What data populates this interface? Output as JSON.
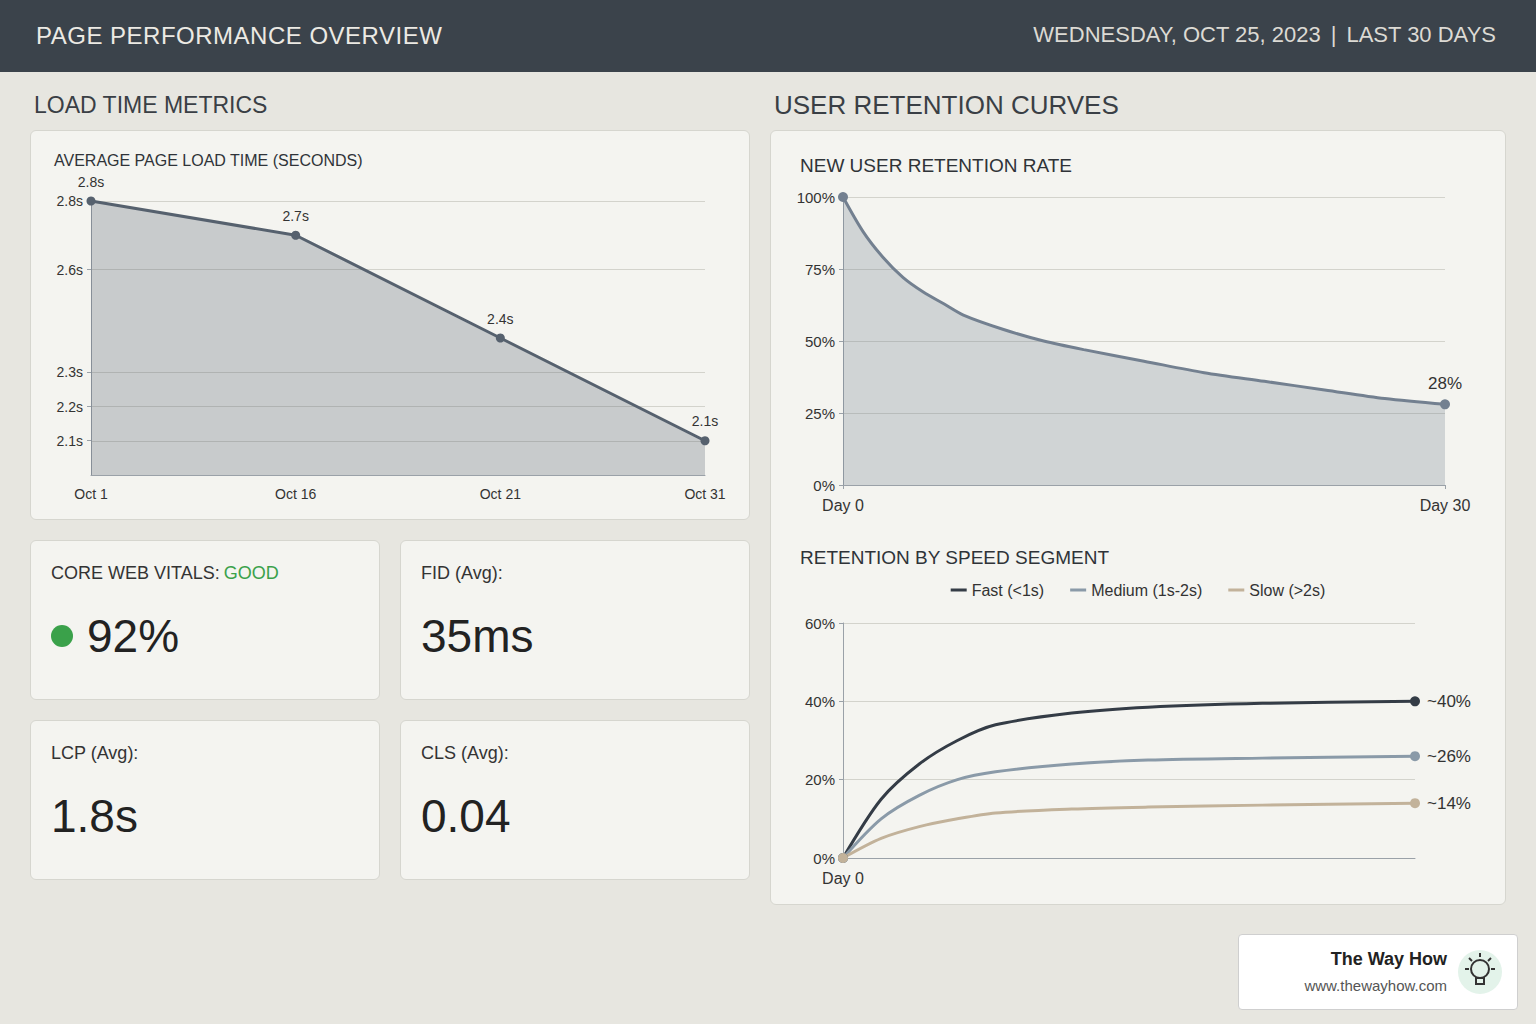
{
  "header": {
    "title": "PAGE PERFORMANCE OVERVIEW",
    "date": "WEDNESDAY, OCT 25, 2023",
    "separator": "|",
    "period": "LAST 30 DAYS"
  },
  "sections": [
    {
      "title": "LOAD TIME METRICS"
    },
    {
      "title": "USER RETENTION CURVES"
    }
  ],
  "cards": [
    {
      "label": "CORE WEB VITALS:",
      "status": "GOOD",
      "value": "92%"
    },
    {
      "label": "FID (Avg):",
      "value": "35ms"
    },
    {
      "label": "LCP (Avg):",
      "value": "1.8s"
    },
    {
      "label": "CLS (Avg):",
      "value": "0.04"
    }
  ],
  "chart_data": [
    {
      "type": "area",
      "title": "AVERAGE PAGE LOAD TIME (SECONDS)",
      "categories": [
        "Oct 1",
        "Oct 16",
        "Oct 21",
        "Oct 31"
      ],
      "values": [
        2.8,
        2.7,
        2.4,
        2.1
      ],
      "value_labels": [
        "2.8s",
        "2.7s",
        "2.4s",
        "2.1s"
      ],
      "data_labels": true,
      "color": "#56616e",
      "marker": "circle",
      "ylim": [
        2.0,
        2.8
      ],
      "yticks": [
        {
          "value": 2.1,
          "label": "2.1s"
        },
        {
          "value": 2.2,
          "label": "2.2s"
        },
        {
          "value": 2.3,
          "label": "2.3s"
        },
        {
          "value": 2.6,
          "label": "2.6s"
        },
        {
          "value": 2.8,
          "label": "2.8s"
        }
      ],
      "grid": true
    },
    {
      "type": "area",
      "title": "NEW USER RETENTION RATE",
      "x": [
        0,
        1,
        2,
        3,
        4,
        5,
        6,
        8,
        10,
        12,
        15,
        18,
        21,
        24,
        27,
        30
      ],
      "values": [
        100,
        88,
        79,
        72,
        67,
        63,
        59,
        54,
        50,
        47,
        43,
        39,
        36,
        33,
        30,
        28
      ],
      "color": "#738090",
      "marker": "circle",
      "xlim": [
        0,
        30
      ],
      "xticks": [
        {
          "value": 0,
          "label": "Day 0"
        },
        {
          "value": 30,
          "label": "Day 30"
        }
      ],
      "ylim": [
        0,
        100
      ],
      "yticks": [
        {
          "value": 0,
          "label": "0%"
        },
        {
          "value": 25,
          "label": "25%"
        },
        {
          "value": 50,
          "label": "50%"
        },
        {
          "value": 75,
          "label": "75%"
        },
        {
          "value": 100,
          "label": "100%"
        }
      ],
      "grid": true,
      "annotations": [
        {
          "x": 30,
          "y": 28,
          "text": "28%"
        }
      ]
    },
    {
      "type": "line",
      "title": "RETENTION BY SPEED SEGMENT",
      "x": [
        0,
        2,
        4,
        6,
        8,
        12,
        16,
        22,
        30
      ],
      "series": [
        {
          "name": "Fast (<1s)",
          "color": "#343c46",
          "values": [
            0,
            15,
            24,
            30,
            34,
            37,
            38.5,
            39.5,
            40
          ]
        },
        {
          "name": "Medium (1s-2s)",
          "color": "#8a9aa8",
          "values": [
            0,
            10,
            16,
            20,
            22,
            24,
            25,
            25.5,
            26
          ]
        },
        {
          "name": "Slow (>2s)",
          "color": "#c2b29a",
          "values": [
            0,
            5,
            8,
            10,
            11.5,
            12.5,
            13,
            13.5,
            14
          ]
        }
      ],
      "legend": "top",
      "marker": "circle",
      "xlim": [
        0,
        30
      ],
      "xticks": [
        {
          "value": 0,
          "label": "Day 0"
        }
      ],
      "ylim": [
        0,
        60
      ],
      "yticks": [
        {
          "value": 0,
          "label": "0%"
        },
        {
          "value": 20,
          "label": "20%"
        },
        {
          "value": 40,
          "label": "40%"
        },
        {
          "value": 60,
          "label": "60%"
        }
      ],
      "grid": true,
      "annotations": [
        {
          "x": 30,
          "y": 40,
          "text": "~40%"
        },
        {
          "x": 30,
          "y": 26,
          "text": "~26%"
        },
        {
          "x": 30,
          "y": 14,
          "text": "~14%"
        }
      ]
    }
  ],
  "watermark": {
    "name": "The Way How",
    "url": "www.thewayhow.com"
  }
}
